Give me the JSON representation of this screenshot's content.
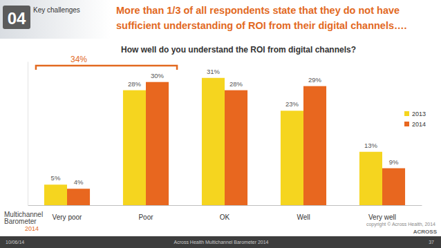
{
  "chart_data": {
    "type": "bar",
    "title": "How well do you understand the ROI from digital channels?",
    "categories": [
      "Very poor",
      "Poor",
      "OK",
      "Well",
      "Very well"
    ],
    "series": [
      {
        "name": "2013",
        "color": "#f5d51f",
        "values": [
          5,
          28,
          31,
          23,
          13
        ],
        "value_labels": [
          "5%",
          "28%",
          "31%",
          "23%",
          "13%"
        ]
      },
      {
        "name": "2014",
        "color": "#e8671f",
        "values": [
          4,
          30,
          28,
          29,
          9
        ],
        "value_labels": [
          "4%",
          "30%",
          "28%",
          "29%",
          "9%"
        ]
      }
    ],
    "ylim": [
      0,
      35
    ],
    "data_labels": true,
    "tick_labels": "x",
    "legend": "right",
    "annotations": [
      {
        "text": "34%",
        "from": "Very poor",
        "to": "Poor"
      }
    ]
  },
  "slide": {
    "section_number": "04",
    "section_label": "Key challenges",
    "headline": [
      "More than 1/3 of all respondents state that they do not have",
      "sufficient understanding of ROI from their digital channels…."
    ],
    "copyright": "copyright © Across Health, 2014",
    "footer_date": "10/06/14",
    "footer_title": "Across Health Multichannel Barometer 2014",
    "page_number": "37",
    "logo_lines": [
      "Multichannel",
      "Barometer",
      "2014"
    ],
    "brand": "ACROSS"
  }
}
